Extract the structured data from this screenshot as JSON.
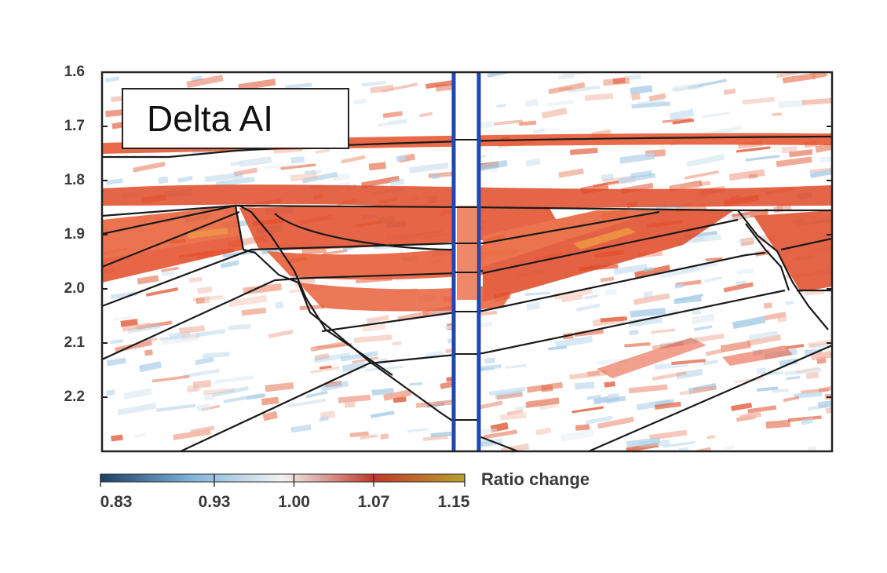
{
  "chart_data": {
    "type": "heatmap",
    "title": "Delta AI",
    "y_axis": {
      "ticks": [
        1.6,
        1.7,
        1.8,
        1.9,
        2.0,
        2.1,
        2.2
      ],
      "tick_labels": [
        "1.6",
        "1.7",
        "1.8",
        "1.9",
        "2.0",
        "2.1",
        "2.2"
      ],
      "range": [
        1.6,
        2.3
      ]
    },
    "colorbar": {
      "label": "Ratio change",
      "ticks": [
        0.83,
        0.93,
        1.0,
        1.07,
        1.15
      ],
      "tick_labels": [
        "0.83",
        "0.93",
        "1.00",
        "1.07",
        "1.15"
      ],
      "colors": [
        "#1d3f66",
        "#7fb3d9",
        "#f2f2f2",
        "#c0392b",
        "#b8a02a"
      ]
    },
    "colors": {
      "high": "#e24a2a",
      "highest": "#f0a020",
      "low": "#a8cce6",
      "neutral": "#ffffff",
      "well_line": "#1f48b0",
      "horizon": "#1a1a1a"
    }
  }
}
